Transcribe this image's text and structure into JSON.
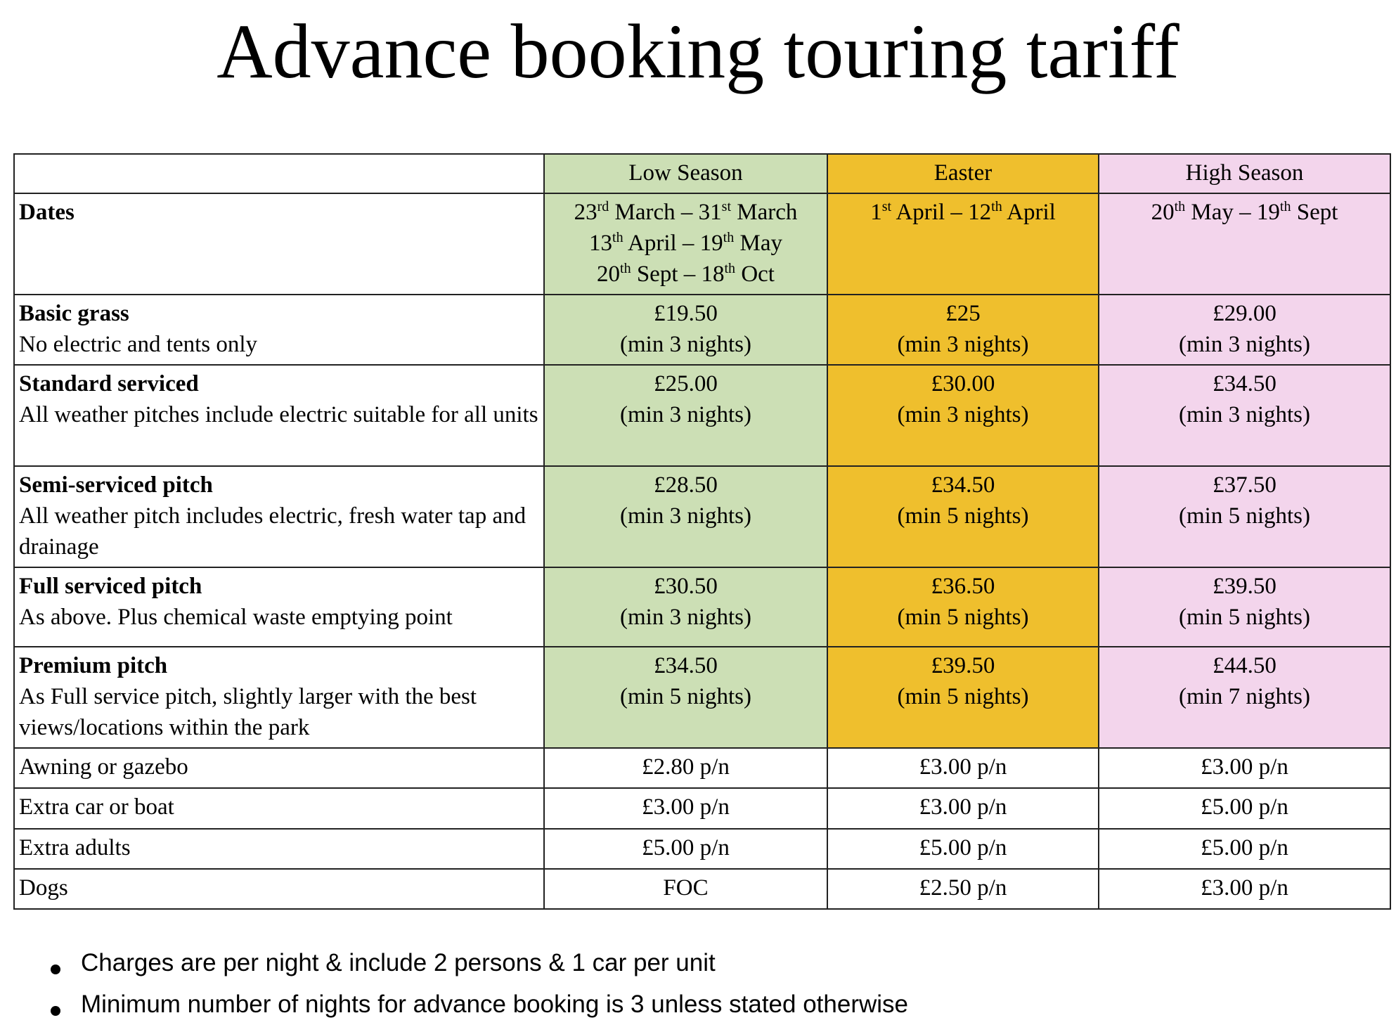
{
  "title": "Advance booking touring tariff",
  "colors": {
    "low": "#ccdfb5",
    "easter": "#efbf2d",
    "high": "#f3d5ec"
  },
  "seasons": [
    "Low Season",
    "Easter",
    "High Season"
  ],
  "dates": {
    "label": "Dates",
    "low": [
      {
        "d1": "23",
        "s1": "rd",
        "m1": " March – ",
        "d2": "31",
        "s2": "st",
        "m2": " March"
      },
      {
        "d1": "13",
        "s1": "th",
        "m1": " April – ",
        "d2": "19",
        "s2": "th",
        "m2": " May"
      },
      {
        "d1": "20",
        "s1": "th",
        "m1": " Sept – ",
        "d2": "18",
        "s2": "th",
        "m2": " Oct"
      }
    ],
    "easter": [
      {
        "d1": "1",
        "s1": "st",
        "m1": " April – ",
        "d2": "12",
        "s2": "th",
        "m2": " April"
      }
    ],
    "high": [
      {
        "d1": "20",
        "s1": "th",
        "m1": " May – ",
        "d2": "19",
        "s2": "th",
        "m2": " Sept"
      }
    ]
  },
  "pitches": [
    {
      "name": "Basic grass",
      "desc": "No electric and tents only",
      "low": [
        "£19.50",
        "(min 3 nights)"
      ],
      "easter": [
        "£25",
        "(min 3 nights)"
      ],
      "high": [
        "£29.00",
        "(min 3 nights)"
      ]
    },
    {
      "name": "Standard serviced",
      "desc": "All weather pitches include electric suitable for all units",
      "low": [
        "£25.00",
        "(min 3 nights)"
      ],
      "easter": [
        "£30.00",
        "(min 3 nights)"
      ],
      "high": [
        "£34.50",
        "(min 3 nights)"
      ]
    },
    {
      "name": "Semi-serviced pitch",
      "desc": "All weather pitch includes electric, fresh water tap and drainage",
      "low": [
        "£28.50",
        "(min 3 nights)"
      ],
      "easter": [
        "£34.50",
        "(min 5 nights)"
      ],
      "high": [
        "£37.50",
        "(min 5 nights)"
      ]
    },
    {
      "name": "Full serviced pitch",
      "desc": "As above. Plus chemical waste emptying point",
      "low": [
        "£30.50",
        "(min 3 nights)"
      ],
      "easter": [
        "£36.50",
        "(min 5 nights)"
      ],
      "high": [
        "£39.50",
        "(min 5 nights)"
      ]
    },
    {
      "name": "Premium pitch",
      "desc": "As Full service pitch, slightly larger with the best views/locations within the park",
      "low": [
        "£34.50",
        "(min 5 nights)"
      ],
      "easter": [
        "£39.50",
        "(min 5 nights)"
      ],
      "high": [
        "£44.50",
        "(min 7 nights)"
      ]
    }
  ],
  "extras": [
    {
      "name": "Awning or gazebo",
      "low": "£2.80 p/n",
      "easter": "£3.00 p/n",
      "high": "£3.00 p/n"
    },
    {
      "name": "Extra car or boat",
      "low": "£3.00 p/n",
      "easter": "£3.00 p/n",
      "high": "£5.00 p/n"
    },
    {
      "name": "Extra adults",
      "low": "£5.00 p/n",
      "easter": "£5.00 p/n",
      "high": "£5.00 p/n"
    },
    {
      "name": "Dogs",
      "low": "FOC",
      "easter": "£2.50 p/n",
      "high": "£3.00 p/n"
    }
  ],
  "notes": [
    "Charges are per night & include 2 persons & 1 car per unit",
    "Minimum number of nights for advance booking is 3 unless stated otherwise"
  ]
}
